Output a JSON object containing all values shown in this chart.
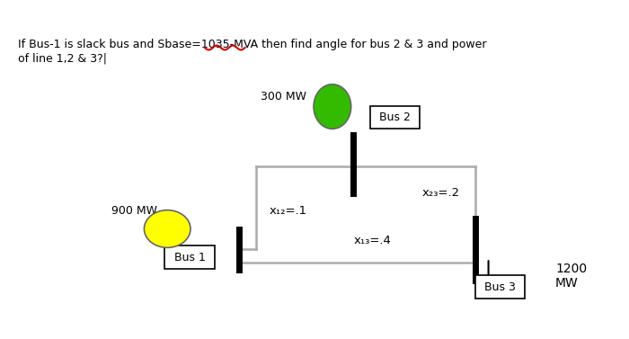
{
  "title_line1": "If Bus-1 is slack bus and Sbase=1035-MVA then find angle for bus 2 & 3 and power",
  "title_line2": "of line 1,2 & 3?|",
  "bg_color": "#ffffff",
  "bus1_label": "Bus 1",
  "bus2_label": "Bus 2",
  "bus3_label": "Bus 3",
  "bus1_circle_color": "#ffff00",
  "bus2_circle_color": "#33bb00",
  "bus1_mw": "900 MW",
  "bus2_mw": "300 MW",
  "bus3_mw_line1": "1200",
  "bus3_mw_line2": "MW",
  "x12_label": "x₁₂=.1",
  "x13_label": "x₁₃=.4",
  "x23_label": "x₂₃=.2",
  "text_color": "#000000",
  "line_color": "#aaaaaa",
  "thick_line_color": "#000000",
  "wave_color": "#cc0000"
}
